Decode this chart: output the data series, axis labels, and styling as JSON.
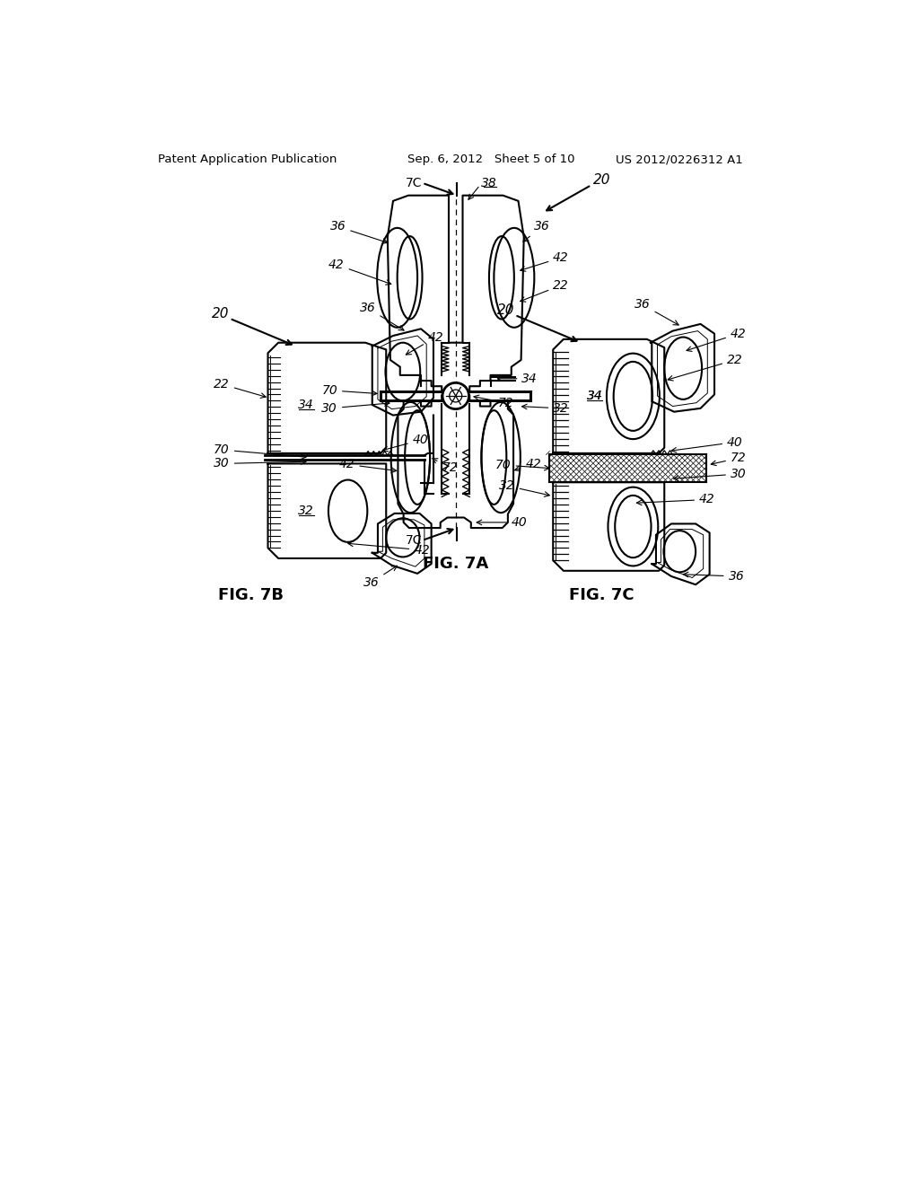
{
  "background_color": "#ffffff",
  "header_left": "Patent Application Publication",
  "header_center": "Sep. 6, 2012   Sheet 5 of 10",
  "header_right": "US 2012/0226312 A1",
  "fig7a_label": "FIG. 7A",
  "fig7b_label": "FIG. 7B",
  "fig7c_label": "FIG. 7C",
  "line_color": "#000000",
  "lw": 1.5,
  "header_fontsize": 9.5,
  "label_fontsize": 10,
  "fig_label_fontsize": 13
}
